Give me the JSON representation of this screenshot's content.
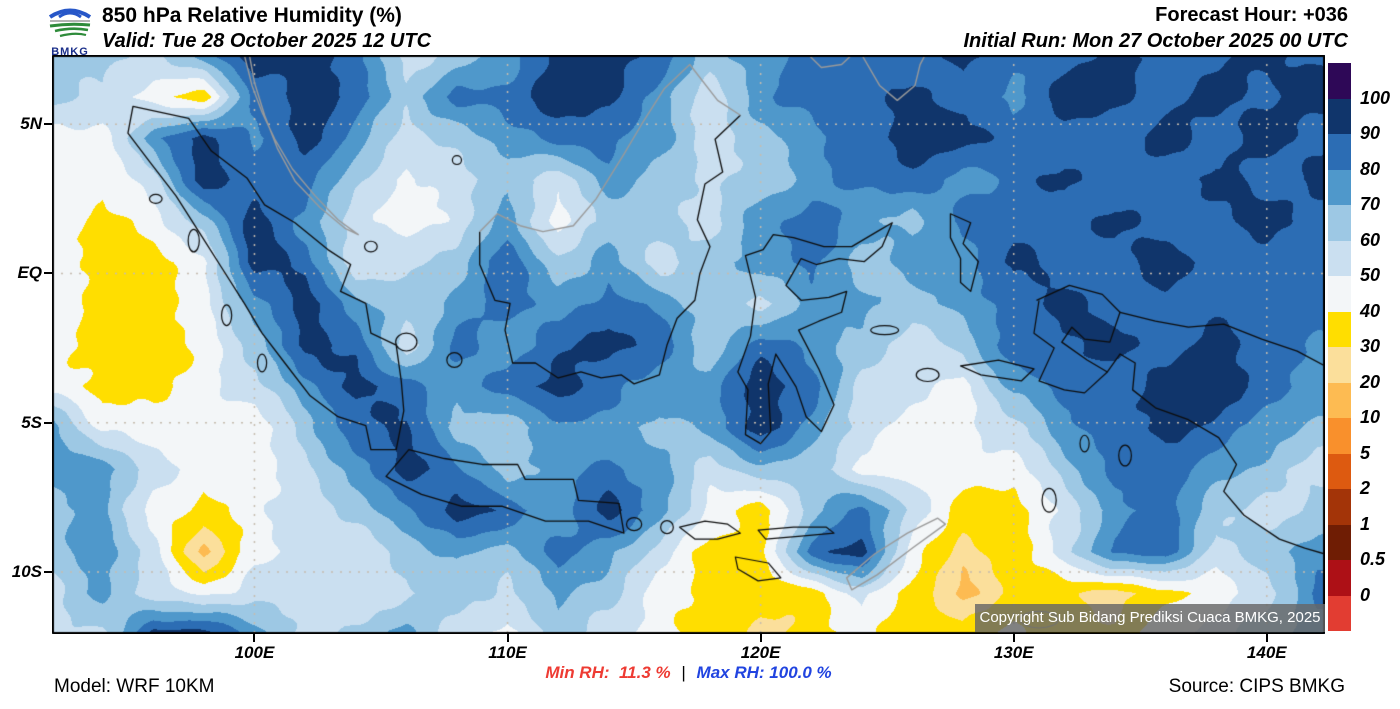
{
  "header": {
    "logo_text": "BMKG",
    "title": "850 hPa Relative Humidity (%)",
    "valid": "Valid: Tue 28 October 2025 12 UTC",
    "forecast_hour": "Forecast Hour: +036",
    "initial_run": "Initial Run: Mon 27 October 2025 00 UTC"
  },
  "map": {
    "copyright": "Copyright Sub Bidang Prediksi Cuaca BMKG, 2025",
    "x_ticks": [
      {
        "label": "100E",
        "lon": 100
      },
      {
        "label": "110E",
        "lon": 110
      },
      {
        "label": "120E",
        "lon": 120
      },
      {
        "label": "130E",
        "lon": 130
      },
      {
        "label": "140E",
        "lon": 140
      }
    ],
    "y_ticks": [
      {
        "label": "5N",
        "lat": 5
      },
      {
        "label": "EQ",
        "lat": 0
      },
      {
        "label": "5S",
        "lat": -5
      },
      {
        "label": "10S",
        "lat": -10
      }
    ]
  },
  "footer": {
    "model": "Model: WRF 10KM",
    "min_rh_label": "Min RH:",
    "min_rh_value": "11.3 %",
    "separator": "|",
    "max_rh_label": "Max RH:",
    "max_rh_value": "100.0 %",
    "source": "Source: CIPS BMKG",
    "min_color": "#ee3b33",
    "max_color": "#2144e0"
  },
  "chart_data": {
    "type": "heatmap",
    "title": "850 hPa Relative Humidity (%)",
    "units": "%",
    "lon_min": 92.0,
    "lon_max": 142.3,
    "lat_min": -12.08,
    "lat_max": 7.32,
    "min_rh_percent": 11.3,
    "max_rh_percent": 100.0,
    "contour_levels": [
      0,
      0.5,
      1,
      2,
      5,
      10,
      20,
      30,
      40,
      50,
      60,
      70,
      80,
      90,
      100
    ],
    "band_colors_low_to_high": [
      "#E23D32",
      "#AD1016",
      "#6F1D04",
      "#A33408",
      "#DD5A10",
      "#F9902C",
      "#FDBB52",
      "#FBDF9B",
      "#FFDE00",
      "#F3F6F8",
      "#CADFF0",
      "#9DC8E4",
      "#4F98CB",
      "#2C6DB4",
      "#10356B",
      "#2E0857"
    ],
    "legend_labels_top_to_bottom": [
      "100",
      "90",
      "80",
      "70",
      "60",
      "50",
      "40",
      "30",
      "20",
      "10",
      "5",
      "2",
      "1",
      "0.5",
      "0"
    ],
    "legend_colors_top_to_bottom": [
      "#2E0857",
      "#10356B",
      "#2C6DB4",
      "#4F98CB",
      "#9DC8E4",
      "#CADFF0",
      "#F3F6F8",
      "#FFDE00",
      "#FBDF9B",
      "#FDBB52",
      "#F9902C",
      "#DD5A10",
      "#A33408",
      "#6F1D04",
      "#AD1016",
      "#E23D32"
    ],
    "gridline_lats": [
      5,
      0,
      -5,
      -10
    ],
    "gridline_lons": [
      100,
      110,
      120,
      130,
      140
    ],
    "grid_lons": [
      92,
      94,
      96,
      98,
      100,
      102,
      104,
      106,
      108,
      110,
      112,
      114,
      116,
      118,
      120,
      122,
      124,
      126,
      128,
      130,
      132,
      134,
      136,
      138,
      140,
      142
    ],
    "grid_lats": [
      7.3,
      5.9,
      4.5,
      3.1,
      1.7,
      0.3,
      -1.1,
      -2.5,
      -3.9,
      -5.3,
      -6.7,
      -8.1,
      -9.5,
      -10.9,
      -12.1
    ],
    "rh_values": [
      [
        65,
        65,
        55,
        75,
        95,
        95,
        85,
        55,
        65,
        75,
        95,
        95,
        85,
        65,
        75,
        85,
        85,
        85,
        95,
        85,
        85,
        95,
        85,
        85,
        95,
        85
      ],
      [
        65,
        55,
        45,
        35,
        85,
        95,
        85,
        65,
        85,
        85,
        95,
        95,
        75,
        55,
        75,
        85,
        85,
        95,
        85,
        75,
        95,
        95,
        85,
        95,
        85,
        95
      ],
      [
        45,
        45,
        75,
        95,
        75,
        95,
        75,
        55,
        65,
        75,
        85,
        85,
        75,
        55,
        65,
        75,
        85,
        95,
        95,
        85,
        85,
        85,
        95,
        85,
        95,
        85
      ],
      [
        45,
        45,
        55,
        95,
        85,
        85,
        65,
        45,
        55,
        65,
        55,
        75,
        65,
        55,
        65,
        75,
        85,
        85,
        75,
        85,
        95,
        85,
        85,
        95,
        85,
        95
      ],
      [
        45,
        35,
        45,
        65,
        95,
        75,
        55,
        45,
        55,
        75,
        45,
        65,
        65,
        55,
        75,
        85,
        75,
        65,
        85,
        85,
        85,
        95,
        85,
        85,
        95,
        85
      ],
      [
        45,
        35,
        35,
        45,
        95,
        85,
        55,
        55,
        65,
        85,
        65,
        75,
        55,
        65,
        75,
        85,
        65,
        75,
        75,
        95,
        85,
        85,
        95,
        85,
        85,
        85
      ],
      [
        45,
        35,
        35,
        45,
        75,
        95,
        75,
        65,
        75,
        85,
        75,
        85,
        75,
        65,
        55,
        75,
        75,
        65,
        75,
        85,
        95,
        85,
        85,
        85,
        85,
        85
      ],
      [
        45,
        35,
        35,
        45,
        65,
        95,
        85,
        55,
        85,
        75,
        85,
        95,
        85,
        65,
        85,
        75,
        65,
        55,
        65,
        85,
        85,
        95,
        85,
        95,
        85,
        75
      ],
      [
        45,
        35,
        35,
        45,
        55,
        75,
        95,
        85,
        75,
        85,
        95,
        85,
        75,
        75,
        95,
        85,
        55,
        55,
        45,
        75,
        85,
        85,
        95,
        95,
        85,
        75
      ],
      [
        75,
        45,
        45,
        45,
        45,
        65,
        85,
        95,
        65,
        65,
        75,
        75,
        65,
        75,
        95,
        75,
        55,
        45,
        45,
        55,
        75,
        85,
        95,
        85,
        75,
        65
      ],
      [
        75,
        75,
        55,
        45,
        45,
        55,
        75,
        95,
        85,
        65,
        75,
        85,
        75,
        55,
        65,
        65,
        45,
        45,
        45,
        45,
        65,
        85,
        85,
        75,
        65,
        55
      ],
      [
        65,
        75,
        45,
        35,
        45,
        55,
        65,
        75,
        95,
        85,
        75,
        95,
        75,
        45,
        35,
        65,
        85,
        55,
        35,
        35,
        55,
        75,
        85,
        65,
        55,
        65
      ],
      [
        65,
        75,
        55,
        15,
        45,
        55,
        55,
        65,
        75,
        65,
        85,
        75,
        55,
        35,
        35,
        85,
        95,
        45,
        25,
        35,
        55,
        85,
        85,
        55,
        65,
        75
      ],
      [
        55,
        75,
        55,
        45,
        55,
        55,
        55,
        55,
        65,
        55,
        75,
        65,
        45,
        35,
        35,
        35,
        55,
        35,
        15,
        35,
        35,
        25,
        35,
        45,
        55,
        85
      ],
      [
        55,
        55,
        95,
        95,
        75,
        55,
        65,
        75,
        55,
        45,
        65,
        55,
        45,
        35,
        25,
        35,
        45,
        35,
        35,
        45,
        35,
        35,
        45,
        55,
        65,
        75
      ]
    ]
  }
}
